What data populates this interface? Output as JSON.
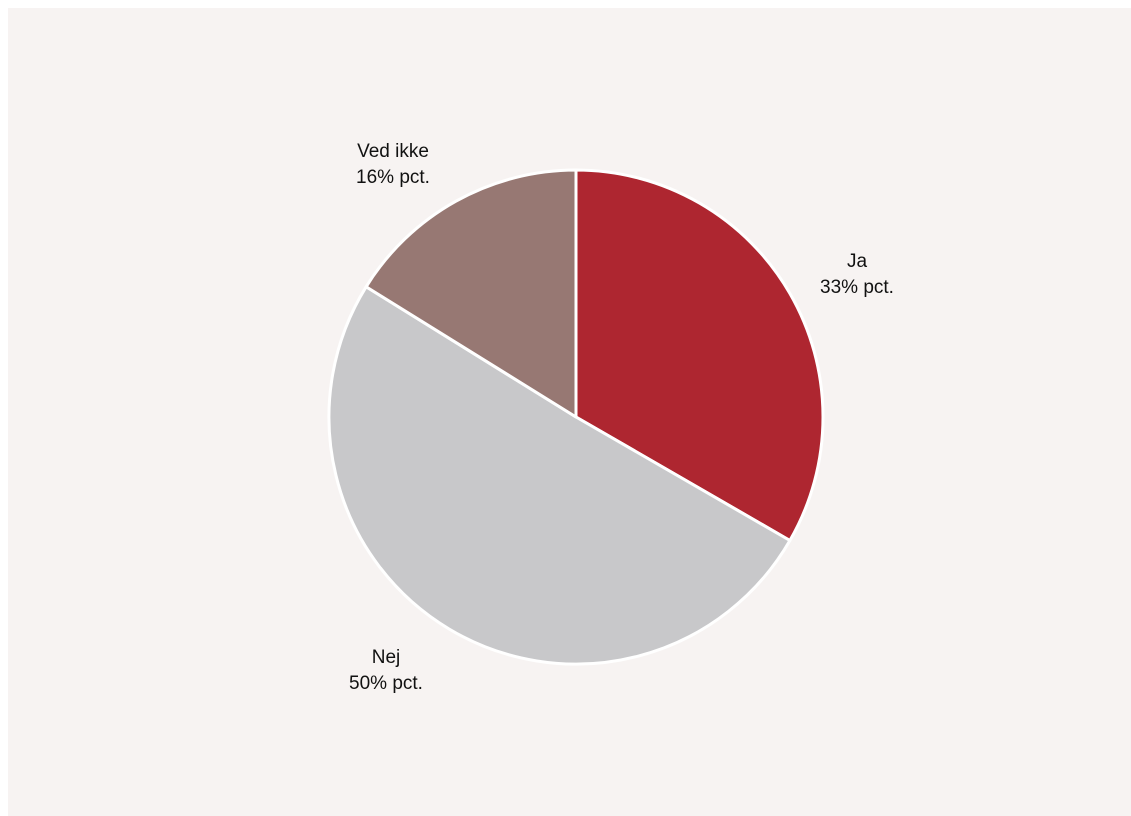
{
  "chart_data": {
    "type": "pie",
    "slices": [
      {
        "label": "Ja",
        "value_label": "33% pct.",
        "value": 33,
        "color": "#ae2630"
      },
      {
        "label": "Nej",
        "value_label": "50% pct.",
        "value": 50,
        "color": "#c8c8ca"
      },
      {
        "label": "Ved ikke",
        "value_label": "16% pct.",
        "value": 16,
        "color": "#977873"
      }
    ],
    "start": "12 o'clock",
    "direction": "clockwise",
    "background_color": "#f7f3f2",
    "separator_color": "#ffffff"
  }
}
